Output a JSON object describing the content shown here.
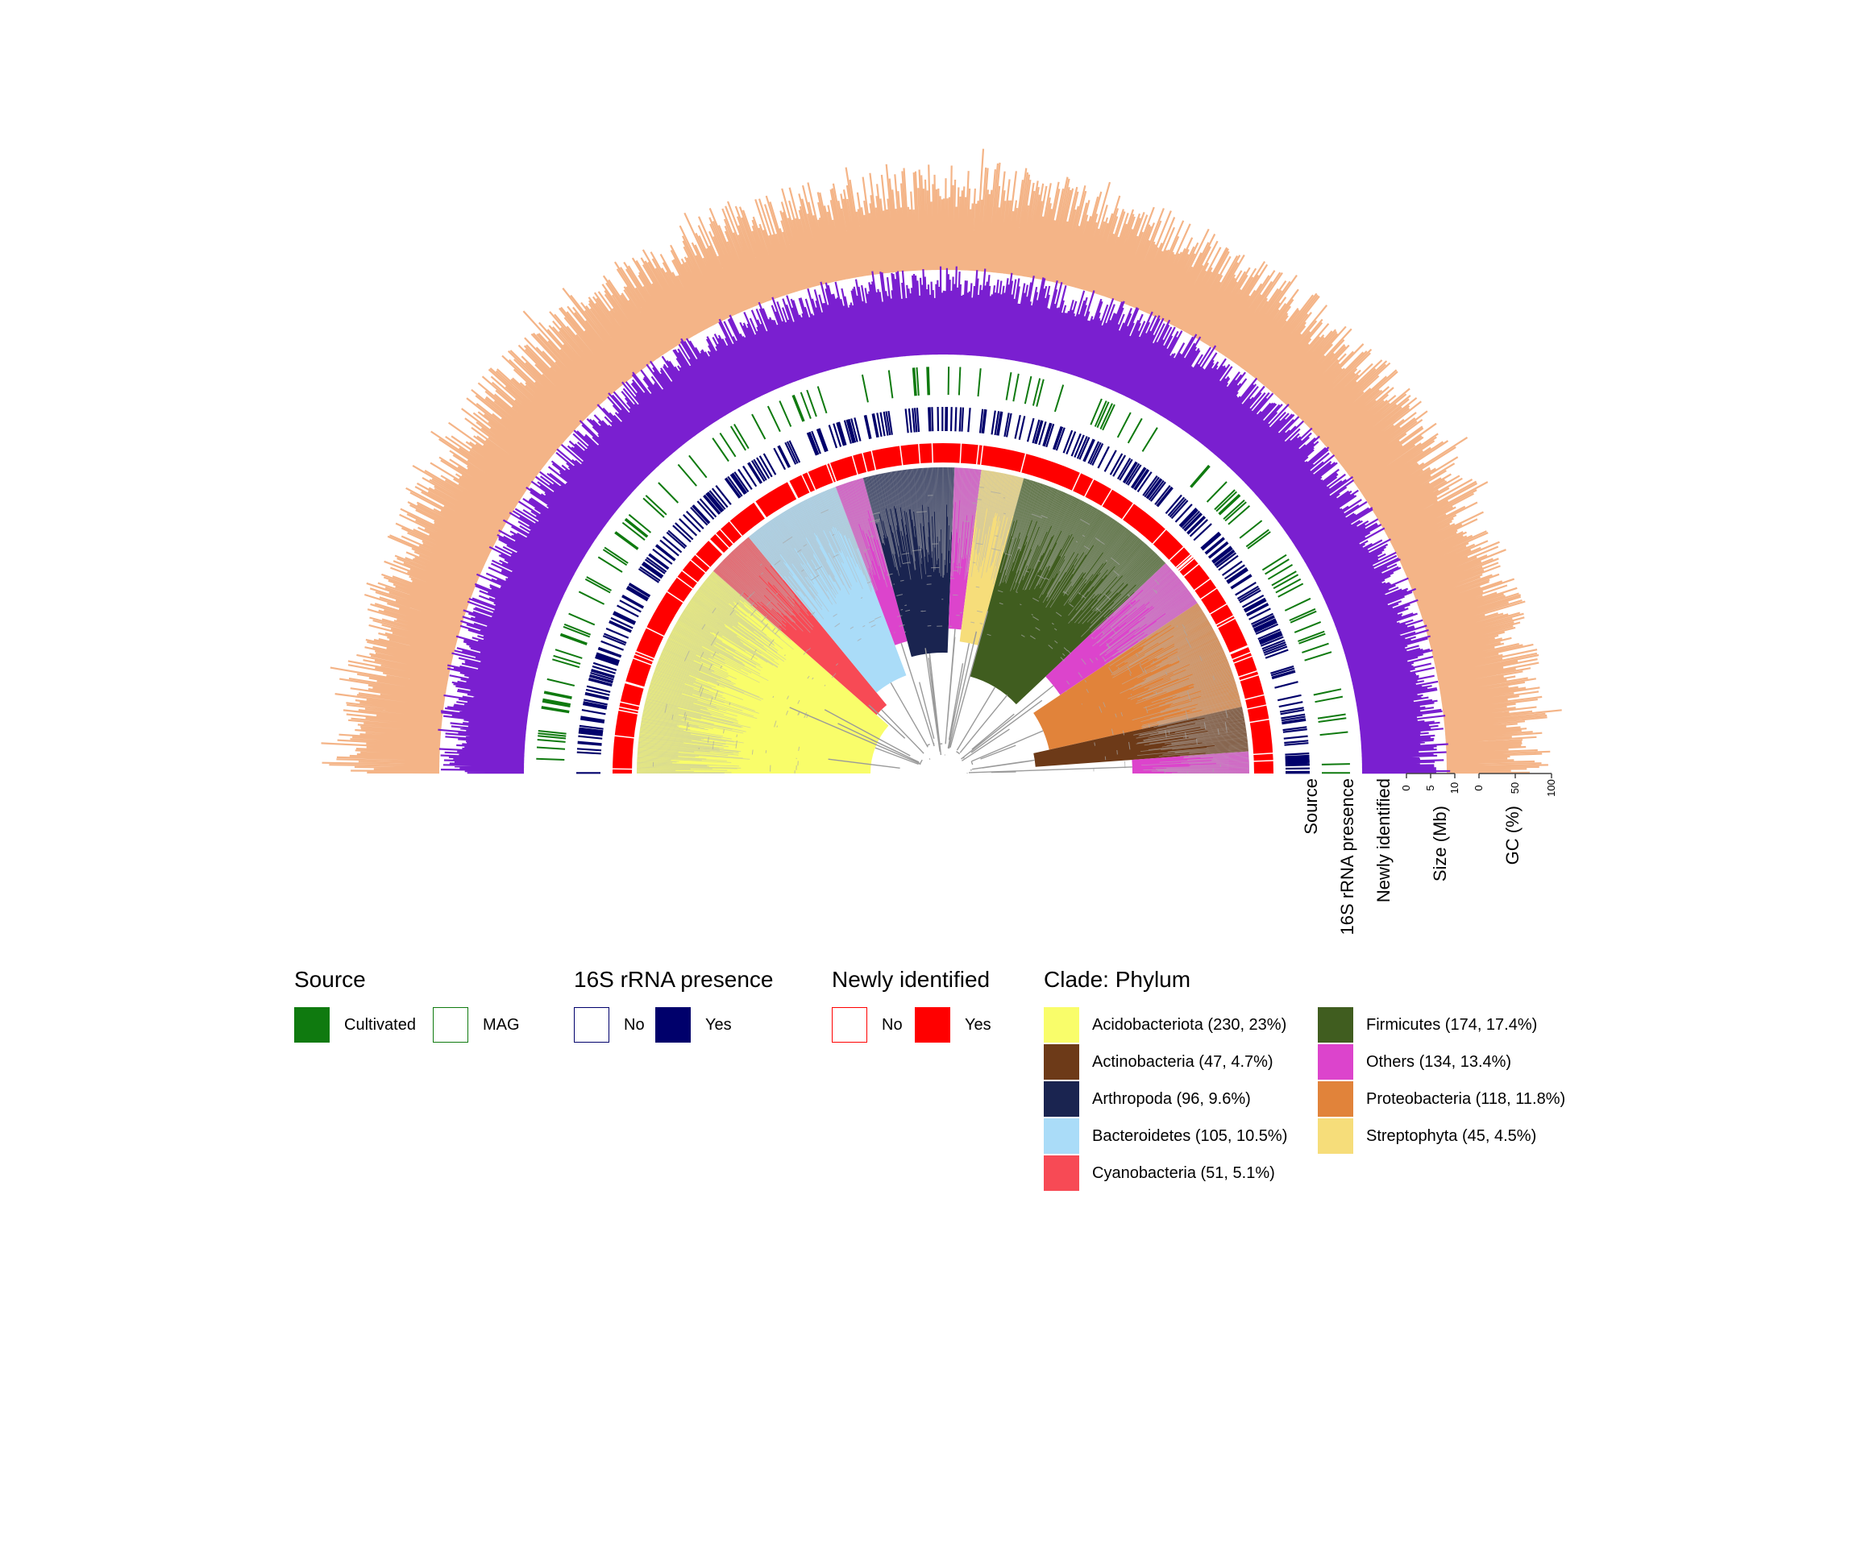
{
  "ring_labels": {
    "source": "Source",
    "rrna": "16S rRNA presence",
    "newly": "Newly identified",
    "size": "Size (Mb)",
    "gc": "GC (%)"
  },
  "size_axis": {
    "ticks": [
      "0",
      "5",
      "10"
    ]
  },
  "gc_axis": {
    "ticks": [
      "0",
      "50",
      "100"
    ]
  },
  "colors": {
    "gc": "#f4b487",
    "size": "#7a1fd0",
    "source_cultivated": "#0f7a0f",
    "rrna_yes": "#00006b",
    "newly_yes": "#ff0000",
    "tree": "#9a9a9a"
  },
  "legend": {
    "source": {
      "title": "Source",
      "items": [
        {
          "label": "Cultivated",
          "color": "#0f7a0f",
          "filled": true
        },
        {
          "label": "MAG",
          "color": "#0f7a0f",
          "filled": false
        }
      ]
    },
    "rrna": {
      "title": "16S rRNA presence",
      "items": [
        {
          "label": "No",
          "color": "#00006b",
          "filled": false
        },
        {
          "label": "Yes",
          "color": "#00006b",
          "filled": true
        }
      ]
    },
    "newly": {
      "title": "Newly identified",
      "items": [
        {
          "label": "No",
          "color": "#ff0000",
          "filled": false
        },
        {
          "label": "Yes",
          "color": "#ff0000",
          "filled": true
        }
      ]
    },
    "clade": {
      "title": "Clade: Phylum",
      "items": [
        {
          "label": "Acidobacteriota (230, 23%)",
          "color": "#f9fd6a"
        },
        {
          "label": "Actinobacteria (47, 4.7%)",
          "color": "#6d3a18"
        },
        {
          "label": "Arthropoda (96, 9.6%)",
          "color": "#1a2450"
        },
        {
          "label": "Bacteroidetes (105, 10.5%)",
          "color": "#aadcf8"
        },
        {
          "label": "Cyanobacteria (51, 5.1%)",
          "color": "#f74a55"
        },
        {
          "label": "Firmicutes (174, 17.4%)",
          "color": "#405d1f"
        },
        {
          "label": "Others (134, 13.4%)",
          "color": "#dc44cc"
        },
        {
          "label": "Proteobacteria (118, 11.8%)",
          "color": "#e1833a"
        },
        {
          "label": "Streptophyta (45, 4.5%)",
          "color": "#f6dd7a"
        }
      ]
    }
  }
}
